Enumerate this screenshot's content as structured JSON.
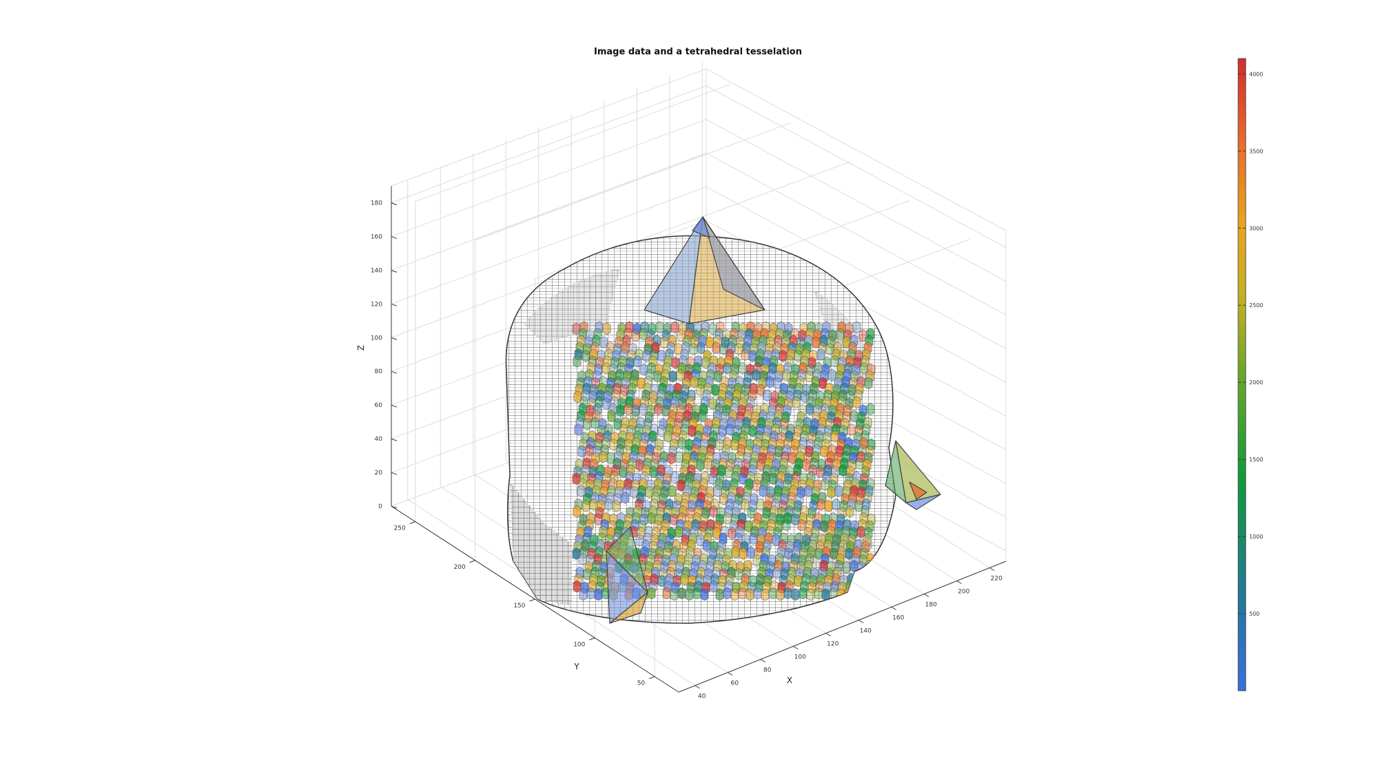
{
  "chart_data": {
    "type": "3d-voxel-mesh",
    "title": "Image data and a tetrahedral tesselation",
    "xlabel": "X",
    "ylabel": "Y",
    "zlabel": "Z",
    "x_ticks": [
      40,
      60,
      80,
      100,
      120,
      140,
      160,
      180,
      200,
      220
    ],
    "y_ticks": [
      50,
      100,
      150,
      200,
      250
    ],
    "z_ticks": [
      0,
      20,
      40,
      60,
      80,
      100,
      120,
      140,
      160,
      180
    ],
    "xlim": [
      30,
      230
    ],
    "ylim": [
      30,
      270
    ],
    "zlim": [
      0,
      190
    ],
    "grid": true,
    "colorbar": {
      "ticks": [
        500,
        1000,
        1500,
        2000,
        2500,
        3000,
        3500,
        4000
      ],
      "range": [
        0,
        4100
      ],
      "colormap": [
        "#3b6fe0",
        "#23789d",
        "#0f9a3a",
        "#6aa82a",
        "#c4b024",
        "#e9a41f",
        "#e8702a",
        "#d42d2d"
      ]
    },
    "series_colors": {
      "voxels": "#6e6e6e",
      "tetra": [
        "#6f8ee0",
        "#5aa862",
        "#d7a334",
        "#a8b853",
        "#8aa6cf"
      ]
    }
  }
}
